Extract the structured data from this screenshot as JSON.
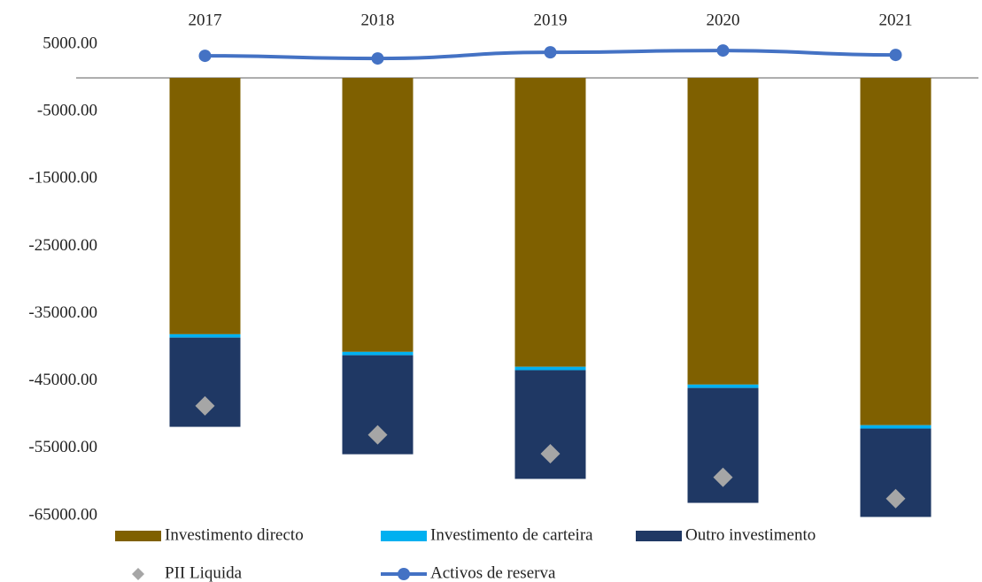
{
  "chart_data": {
    "type": "bar",
    "categories": [
      "2017",
      "2018",
      "2019",
      "2020",
      "2021"
    ],
    "series": [
      {
        "name": "Investimento directo",
        "color": "#7f6000",
        "kind": "bar",
        "values": [
          -38060,
          -40680,
          -42900,
          -45540,
          -51570
        ]
      },
      {
        "name": "Investimento de carteira",
        "color": "#00b0f0",
        "kind": "bar",
        "values": [
          -500,
          -500,
          -500,
          -500,
          -500
        ]
      },
      {
        "name": "Outro investimento",
        "color": "#1f3864",
        "kind": "bar",
        "values": [
          -13250,
          -14700,
          -16140,
          -17060,
          -13120
        ]
      },
      {
        "name": "PII Liquida",
        "color": "#a6a6a6",
        "kind": "scatter",
        "values": [
          -48700,
          -53000,
          -55800,
          -59300,
          -62470
        ]
      },
      {
        "name": "Activos de reserva",
        "color": "#4472c4",
        "kind": "line",
        "values": [
          3280,
          2890,
          3800,
          4070,
          3410
        ]
      }
    ],
    "ylim": [
      -65000,
      5000
    ],
    "yticks": [
      {
        "value": 5000,
        "label": "5000.00"
      },
      {
        "value": -5000,
        "label": "-5000.00"
      },
      {
        "value": -15000,
        "label": "-15000.00"
      },
      {
        "value": -25000,
        "label": "-25000.00"
      },
      {
        "value": -35000,
        "label": "-35000.00"
      },
      {
        "value": -45000,
        "label": "-45000.00"
      },
      {
        "value": -55000,
        "label": "-55000.00"
      },
      {
        "value": -65000,
        "label": "-65000.00"
      }
    ],
    "grid": false,
    "legend": "bottom"
  }
}
